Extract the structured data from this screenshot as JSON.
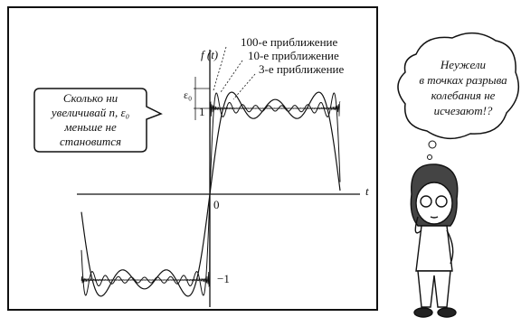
{
  "graph": {
    "y_axis_label": "f (t)",
    "x_axis_label": "t",
    "origin_label": "0",
    "level_plus_label": "1",
    "level_minus_label": "−1",
    "epsilon_label": "ε₀",
    "curve_labels": [
      "100-е приближение",
      "10-е приближение",
      "3-е приближение"
    ]
  },
  "speech_bubble": {
    "lines": [
      "Сколько ни",
      "увеличивай n, ε₀",
      "меньше не",
      "становится"
    ]
  },
  "thought_bubble": {
    "lines": [
      "Неужели",
      "в точках разрыва",
      "колебания не",
      "исчезают!?"
    ]
  }
}
